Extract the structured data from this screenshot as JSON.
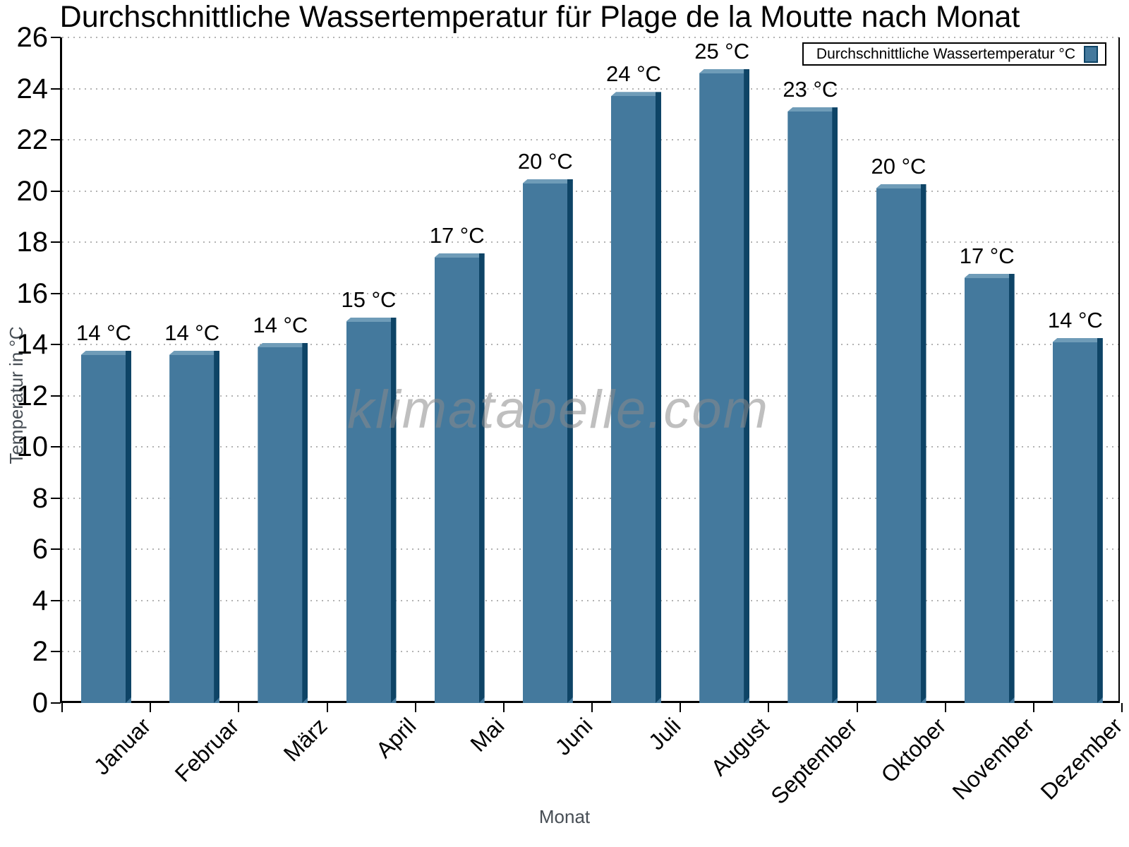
{
  "chart_data": {
    "type": "bar",
    "title": "Durchschnittliche Wassertemperatur für Plage de la Moutte nach Monat",
    "xlabel": "Monat",
    "ylabel": "Temperatur in °C",
    "ylim": [
      0,
      26
    ],
    "ytick_step": 2,
    "yticks": [
      0,
      2,
      4,
      6,
      8,
      10,
      12,
      14,
      16,
      18,
      20,
      22,
      24,
      26
    ],
    "grid": "horizontal-dotted",
    "legend": {
      "label": "Durchschnittliche Wassertemperatur °C",
      "position": "top-right"
    },
    "watermark": "klimatabelle.com",
    "categories": [
      "Januar",
      "Februar",
      "März",
      "April",
      "Mai",
      "Juni",
      "Juli",
      "August",
      "September",
      "Oktober",
      "November",
      "Dezember"
    ],
    "series": [
      {
        "name": "Durchschnittliche Wassertemperatur °C",
        "values": [
          13.6,
          13.6,
          13.9,
          14.9,
          17.4,
          20.3,
          23.7,
          24.6,
          23.1,
          20.1,
          16.6,
          14.1
        ],
        "labels": [
          "14 °C",
          "14 °C",
          "14 °C",
          "15 °C",
          "17 °C",
          "20 °C",
          "24 °C",
          "25 °C",
          "23 °C",
          "20 °C",
          "17 °C",
          "14 °C"
        ]
      }
    ],
    "colors": {
      "bar_face": "#44799D",
      "bar_edge": "#0E4466",
      "bar_bevel": "#6F9CB8",
      "gridline": "#B3B3B3",
      "axis": "#000000",
      "axis_title_text": "#474E55",
      "watermark_text": "#8A8A8A"
    }
  }
}
